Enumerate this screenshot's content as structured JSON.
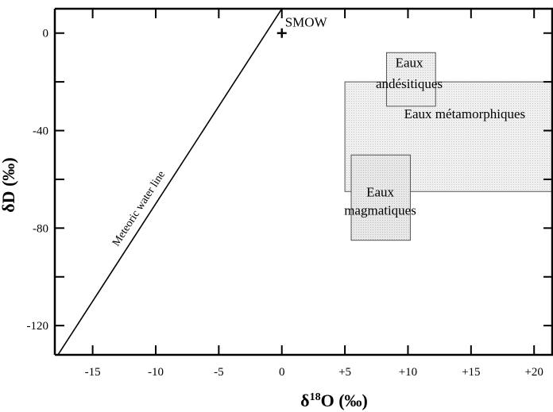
{
  "chart_data": {
    "type": "scatter",
    "xlabel_symbol": "δ",
    "xlabel_sup": "18",
    "xlabel_rest": "O (‰)",
    "ylabel": "δD (‰)",
    "xlim": [
      -18,
      21.5
    ],
    "ylim": [
      -132,
      10
    ],
    "x_ticks": [
      {
        "value": -15,
        "label": "-15"
      },
      {
        "value": -10,
        "label": "-10"
      },
      {
        "value": -5,
        "label": "-5"
      },
      {
        "value": 0,
        "label": "0"
      },
      {
        "value": 5,
        "label": "+5"
      },
      {
        "value": 10,
        "label": "+10"
      },
      {
        "value": 15,
        "label": "+15"
      },
      {
        "value": 20,
        "label": "+20"
      }
    ],
    "y_ticks": [
      {
        "value": 0,
        "label": "0"
      },
      {
        "value": -40,
        "label": "-40"
      },
      {
        "value": -80,
        "label": "-80"
      },
      {
        "value": -120,
        "label": "-120"
      }
    ],
    "meteoric_line": {
      "label": "Meteoric water line",
      "slope": 8,
      "intercept": 10
    },
    "reference_point": {
      "label": "SMOW",
      "x": 0,
      "y": 0
    },
    "regions": [
      {
        "name": "metamorphic",
        "label_lines": [
          "Eaux métamorphiques"
        ],
        "x_range": [
          5,
          21.5
        ],
        "y_range": [
          -65,
          -20
        ],
        "fill": "#ebebeb"
      },
      {
        "name": "magmatic",
        "label_lines": [
          "Eaux",
          "magmatiques"
        ],
        "x_range": [
          5.5,
          10
        ],
        "y_range": [
          -85,
          -50
        ],
        "fill": "#d9d9d9"
      },
      {
        "name": "andesitic",
        "label_lines": [
          "Eaux",
          "andésitiques"
        ],
        "x_range": [
          8.3,
          12
        ],
        "y_range": [
          -30,
          -8
        ],
        "fill": "#e8e8e8"
      }
    ]
  }
}
